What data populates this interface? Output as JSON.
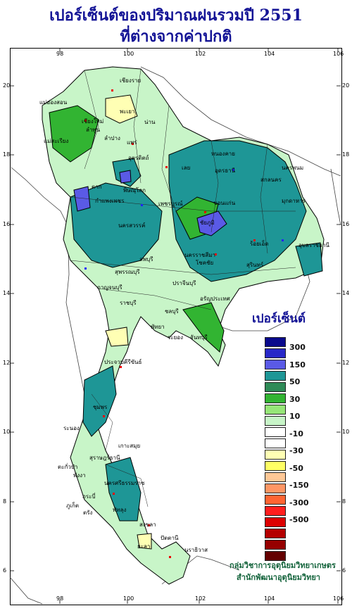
{
  "title": {
    "line1": "เปอร์เซ็นต์ของปริมาณฝนรวมปี 2551",
    "line2": "ที่ต่างจากค่าปกติ"
  },
  "axes": {
    "longitude_ticks": [
      "98",
      "100",
      "102",
      "104",
      "106"
    ],
    "latitude_ticks": [
      "20",
      "18",
      "16",
      "14",
      "12",
      "10",
      "8",
      "6"
    ]
  },
  "legend": {
    "title": "เปอร์เซ็นต์",
    "labels": [
      "300",
      "150",
      "50",
      "30",
      "10",
      "-10",
      "-30",
      "-50",
      "-150",
      "-300",
      "-500"
    ],
    "colors": [
      "#0a0a8c",
      "#2828c8",
      "#5a5ae6",
      "#1e9696",
      "#2e8b57",
      "#32b432",
      "#96e678",
      "#c8f5c8",
      "#ffffff",
      "#ffffff",
      "#ffffb4",
      "#ffff64",
      "#ffc896",
      "#ff9664",
      "#ff6432",
      "#ff1e1e",
      "#dc0000",
      "#b40000",
      "#960000",
      "#640000"
    ]
  },
  "places": [
    {
      "name": "เชียงราย"
    },
    {
      "name": "แม่ฮ่องสอน"
    },
    {
      "name": "พะเยา"
    },
    {
      "name": "เชียงใหม่"
    },
    {
      "name": "ลำพูน"
    },
    {
      "name": "ลำปาง"
    },
    {
      "name": "น่าน"
    },
    {
      "name": "แพร่"
    },
    {
      "name": "แม่สะเรียง"
    },
    {
      "name": "หนองคาย"
    },
    {
      "name": "อุตรดิตถ์"
    },
    {
      "name": "นครพนม"
    },
    {
      "name": "เลย"
    },
    {
      "name": "อุดรธานี"
    },
    {
      "name": "สกลนคร"
    },
    {
      "name": "ตาก"
    },
    {
      "name": "พิษณุโลก"
    },
    {
      "name": "มุกดาหาร"
    },
    {
      "name": "กำแพงเพชร"
    },
    {
      "name": "เพชรบูรณ์"
    },
    {
      "name": "ขอนแก่น"
    },
    {
      "name": "ชัยภูมิ"
    },
    {
      "name": "นครสวรรค์"
    },
    {
      "name": "ร้อยเอ็ด"
    },
    {
      "name": "อุบลราชธานี"
    },
    {
      "name": "นครราชสีมา"
    },
    {
      "name": "ลพบุรี"
    },
    {
      "name": "สุพรรณบุรี"
    },
    {
      "name": "โชคชัย"
    },
    {
      "name": "สุรินทร์"
    },
    {
      "name": "กาญจนบุรี"
    },
    {
      "name": "ปราจีนบุรี"
    },
    {
      "name": "ราชบุรี"
    },
    {
      "name": "อรัญประเทศ"
    },
    {
      "name": "ชลบุรี"
    },
    {
      "name": "พัทยา"
    },
    {
      "name": "ระยอง"
    },
    {
      "name": "จันทบุรี"
    },
    {
      "name": "ประจวบคีรีขันธ์"
    },
    {
      "name": "ชุมพร"
    },
    {
      "name": "ระนอง"
    },
    {
      "name": "เกาะสมุย"
    },
    {
      "name": "สุราษฎร์ธานี"
    },
    {
      "name": "ตะกั่วป่า"
    },
    {
      "name": "พังงา"
    },
    {
      "name": "นครศรีธรรมราช"
    },
    {
      "name": "ภูเก็ต"
    },
    {
      "name": "กระบี่"
    },
    {
      "name": "ตรัง"
    },
    {
      "name": "พัทลุง"
    },
    {
      "name": "สงขลา"
    },
    {
      "name": "ปัตตานี"
    },
    {
      "name": "ยะลา"
    },
    {
      "name": "นราธิวาส"
    }
  ],
  "credit": {
    "line1": "กลุ่มวิชาการอุตุนิยมวิทยาเกษตร",
    "line2": "สำนักพัฒนาอุตุนิยมวิทยา"
  }
}
